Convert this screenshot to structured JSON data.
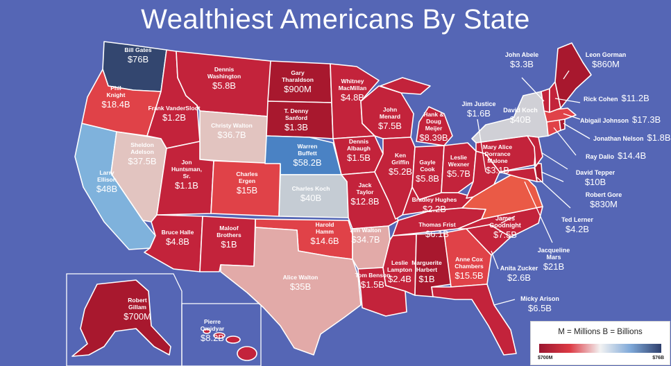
{
  "title": "Wealthiest Americans By State",
  "colors": {
    "background": "#5566b5",
    "scale_low": "#9a1630",
    "scale_mid": "#f2f2f2",
    "scale_high": "#2e3f6c"
  },
  "legend": {
    "title": "M = Millions     B = Billions",
    "min": "$700M",
    "max": "$76B"
  },
  "states": [
    {
      "state": "WA",
      "name": "Bill Gates",
      "value": "$76B"
    },
    {
      "state": "OR",
      "name": "Phil Knight",
      "value": "$18.4B"
    },
    {
      "state": "CA",
      "name": "Larry Ellison",
      "value": "$48B"
    },
    {
      "state": "NV",
      "name": "Sheldon Adelson",
      "value": "$37.5B"
    },
    {
      "state": "ID",
      "name": "Frank VanderSloot",
      "value": "$1.2B"
    },
    {
      "state": "MT",
      "name": "Dennis Washington",
      "value": "$5.8B"
    },
    {
      "state": "WY",
      "name": "Christy Walton",
      "value": "$36.7B"
    },
    {
      "state": "UT",
      "name": "Jon Huntsman, Sr.",
      "value": "$1.1B"
    },
    {
      "state": "CO",
      "name": "Charles Ergen",
      "value": "$15B"
    },
    {
      "state": "AZ",
      "name": "Bruce Halle",
      "value": "$4.8B"
    },
    {
      "state": "NM",
      "name": "Maloof Brothers",
      "value": "$1B"
    },
    {
      "state": "ND",
      "name": "Gary Tharaldson",
      "value": "$900M"
    },
    {
      "state": "SD",
      "name": "T. Denny Sanford",
      "value": "$1.3B"
    },
    {
      "state": "NE",
      "name": "Warren Buffett",
      "value": "$58.2B"
    },
    {
      "state": "KS",
      "name": "Charles Koch",
      "value": "$40B"
    },
    {
      "state": "OK",
      "name": "Harold Hamm",
      "value": "$14.6B"
    },
    {
      "state": "TX",
      "name": "Alice Walton",
      "value": "$35B"
    },
    {
      "state": "MN",
      "name": "Whitney MacMillan",
      "value": "$4.8B"
    },
    {
      "state": "IA",
      "name": "Dennis Albaugh",
      "value": "$1.5B"
    },
    {
      "state": "MO",
      "name": "Jack Taylor",
      "value": "$12.8B"
    },
    {
      "state": "AR",
      "name": "Jim Walton",
      "value": "$34.7B"
    },
    {
      "state": "LA",
      "name": "Tom Benson",
      "value": "$1.5B"
    },
    {
      "state": "WI",
      "name": "John Menard",
      "value": "$7.5B"
    },
    {
      "state": "IL",
      "name": "Ken Griffin",
      "value": "$5.2B"
    },
    {
      "state": "MI",
      "name": "Hank & Doug Meijer",
      "value": "$8.39B"
    },
    {
      "state": "IN",
      "name": "Gayle Cook",
      "value": "$5.8B"
    },
    {
      "state": "OH",
      "name": "Leslie Wexner",
      "value": "$5.7B"
    },
    {
      "state": "KY",
      "name": "Bradley Hughes",
      "value": "$2.2B"
    },
    {
      "state": "TN",
      "name": "Thomas Frist",
      "value": "$6.1B"
    },
    {
      "state": "MS",
      "name": "Leslie Lampton",
      "value": "$2.4B"
    },
    {
      "state": "AL",
      "name": "Marguerite Harbert",
      "value": "$1B"
    },
    {
      "state": "GA",
      "name": "Anne Cox Chambers",
      "value": "$15.5B"
    },
    {
      "state": "PA",
      "name": "Mary Alice Dorrance Malone",
      "value": "$3.1B"
    },
    {
      "state": "AK",
      "name": "Robert Gillam",
      "value": "$700M"
    },
    {
      "state": "HI",
      "name": "Pierre Omidyar",
      "value": "$8.2B"
    }
  ],
  "callouts": [
    {
      "state": "WV",
      "name": "Jim Justice",
      "value": "$1.6B"
    },
    {
      "state": "NY",
      "name": "David Koch",
      "value": "$40B"
    },
    {
      "state": "VT",
      "name": "John Abele",
      "value": "$3.3B"
    },
    {
      "state": "ME",
      "name": "Leon Gorman",
      "value": "$860M"
    },
    {
      "state": "NH",
      "name": "Rick Cohen",
      "value": "$11.2B"
    },
    {
      "state": "MA",
      "name": "Abigail Johnson",
      "value": "$17.3B"
    },
    {
      "state": "RI",
      "name": "Jonathan Nelson",
      "value": "$1.8B"
    },
    {
      "state": "CT",
      "name": "Ray Dalio",
      "value": "$14.4B"
    },
    {
      "state": "NJ",
      "name": "David Tepper",
      "value": "$10B"
    },
    {
      "state": "DE",
      "name": "Robert Gore",
      "value": "$830M"
    },
    {
      "state": "MD",
      "name": "Ted Lerner",
      "value": "$4.2B"
    },
    {
      "state": "VA",
      "name": "Jacqueline Mars",
      "value": "$21B"
    },
    {
      "state": "NC",
      "name": "James Goodnight",
      "value": "$7.5B"
    },
    {
      "state": "SC",
      "name": "Anita Zucker",
      "value": "$2.6B"
    },
    {
      "state": "FL",
      "name": "Micky Arison",
      "value": "$6.5B"
    }
  ],
  "icons": [
    "map-of-united-states"
  ]
}
